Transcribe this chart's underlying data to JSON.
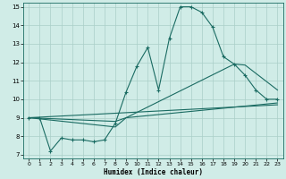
{
  "xlabel": "Humidex (Indice chaleur)",
  "xlim": [
    -0.5,
    23.5
  ],
  "ylim": [
    6.8,
    15.2
  ],
  "yticks": [
    7,
    8,
    9,
    10,
    11,
    12,
    13,
    14,
    15
  ],
  "xticks": [
    0,
    1,
    2,
    3,
    4,
    5,
    6,
    7,
    8,
    9,
    10,
    11,
    12,
    13,
    14,
    15,
    16,
    17,
    18,
    19,
    20,
    21,
    22,
    23
  ],
  "bg_color": "#d0ece7",
  "grid_color": "#aacfc8",
  "line_color": "#1a6b62",
  "line1_x": [
    0,
    1,
    2,
    3,
    4,
    5,
    6,
    7,
    8,
    9,
    10,
    11,
    12,
    13,
    14,
    15,
    16,
    17,
    18,
    19,
    20,
    21,
    22,
    23
  ],
  "line1_y": [
    9.0,
    9.0,
    7.2,
    7.9,
    7.8,
    7.8,
    7.7,
    7.8,
    8.7,
    10.4,
    11.8,
    12.8,
    10.5,
    13.3,
    15.0,
    15.0,
    14.7,
    13.9,
    12.3,
    11.9,
    11.3,
    10.5,
    10.0,
    10.0
  ],
  "line2_x": [
    0,
    8,
    9,
    19,
    20,
    23
  ],
  "line2_y": [
    9.0,
    8.8,
    9.0,
    11.9,
    11.85,
    10.5
  ],
  "line3_x": [
    0,
    8,
    9,
    23
  ],
  "line3_y": [
    9.0,
    8.5,
    9.0,
    9.8
  ],
  "line4_x": [
    0,
    23
  ],
  "line4_y": [
    9.0,
    9.7
  ]
}
